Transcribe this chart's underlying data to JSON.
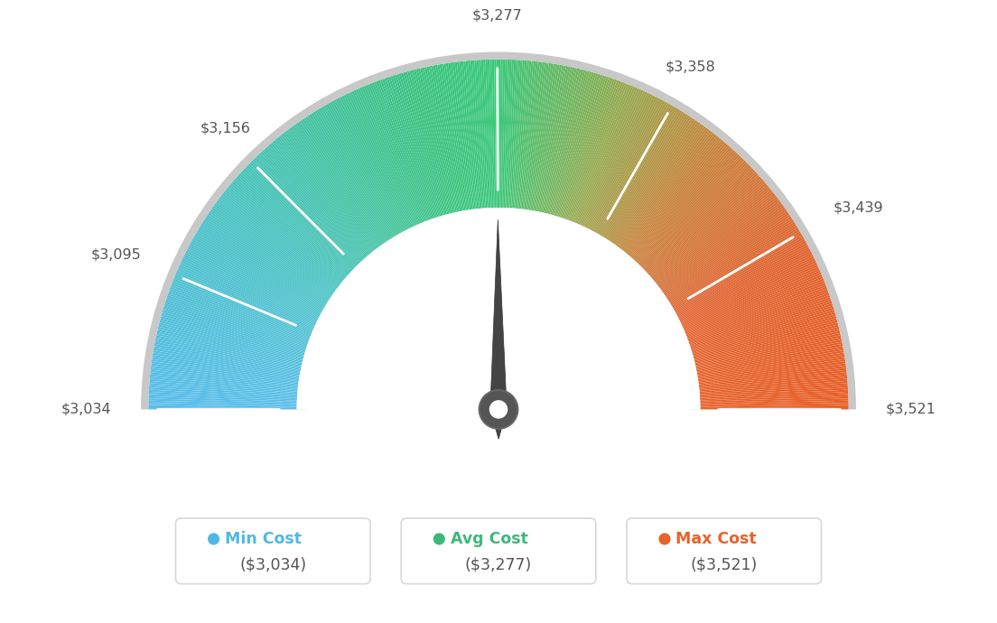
{
  "min_val": 3034,
  "avg_val": 3277,
  "max_val": 3521,
  "tick_labels": [
    "$3,034",
    "$3,095",
    "$3,156",
    "$3,277",
    "$3,358",
    "$3,439",
    "$3,521"
  ],
  "tick_values": [
    3034,
    3095,
    3156,
    3277,
    3358,
    3439,
    3521
  ],
  "legend_items": [
    {
      "label": "Min Cost",
      "value": "($3,034)",
      "color": "#4db8e8"
    },
    {
      "label": "Avg Cost",
      "value": "($3,277)",
      "color": "#3db87a"
    },
    {
      "label": "Max Cost",
      "value": "($3,521)",
      "color": "#e8622a"
    }
  ],
  "background_color": "#ffffff",
  "needle_value": 3277,
  "color_stops": [
    [
      0.0,
      [
        91,
        190,
        235
      ]
    ],
    [
      0.2,
      [
        75,
        195,
        195
      ]
    ],
    [
      0.42,
      [
        61,
        195,
        130
      ]
    ],
    [
      0.5,
      [
        61,
        200,
        122
      ]
    ],
    [
      0.62,
      [
        150,
        170,
        80
      ]
    ],
    [
      0.72,
      [
        200,
        130,
        60
      ]
    ],
    [
      0.85,
      [
        225,
        100,
        50
      ]
    ],
    [
      1.0,
      [
        232,
        98,
        42
      ]
    ]
  ]
}
